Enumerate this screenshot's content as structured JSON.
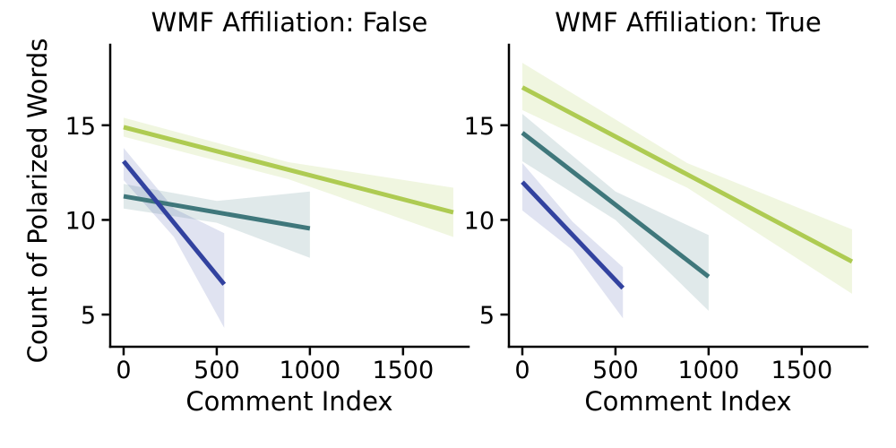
{
  "figure": {
    "background": "#ffffff",
    "text_color": "#000000",
    "ylabel": "Count of Polarized Words",
    "xlabel": "Comment Index",
    "subplot_titles": [
      "WMF Affiliation: False",
      "WMF Affiliation: True"
    ]
  },
  "chart_data": [
    {
      "type": "line",
      "title": "WMF Affiliation: False",
      "xlabel": "Comment Index",
      "ylabel": "Count of Polarized Words",
      "x_ticks": [
        0,
        500,
        1000,
        1500
      ],
      "y_ticks": [
        5,
        10,
        15
      ],
      "xlim": [
        -72,
        1852
      ],
      "ylim": [
        3.3,
        19.25
      ],
      "grid": false,
      "legend": "none",
      "series": [
        {
          "name": "series-green",
          "color": "#aecb52",
          "ci_color": "rgba(174,203,82,0.18)",
          "x": [
            0,
            1770
          ],
          "y": [
            14.9,
            10.4
          ],
          "ci_x": [
            0,
            885,
            1770
          ],
          "ci_upper": [
            15.4,
            13.05,
            11.7
          ],
          "ci_lower": [
            14.4,
            12.15,
            9.1
          ]
        },
        {
          "name": "series-teal",
          "color": "#3f777b",
          "ci_color": "rgba(63,119,123,0.16)",
          "x": [
            0,
            1000
          ],
          "y": [
            11.25,
            9.55
          ],
          "ci_x": [
            0,
            500,
            1000
          ],
          "ci_upper": [
            11.9,
            11.0,
            11.5
          ],
          "ci_lower": [
            10.6,
            9.85,
            8.0
          ]
        },
        {
          "name": "series-blue",
          "color": "#32429f",
          "ci_color": "rgba(50,66,159,0.15)",
          "x": [
            0,
            540
          ],
          "y": [
            13.1,
            6.6
          ],
          "ci_x": [
            0,
            270,
            540
          ],
          "ci_upper": [
            13.8,
            10.6,
            9.3
          ],
          "ci_lower": [
            12.1,
            9.1,
            4.3
          ]
        }
      ]
    },
    {
      "type": "line",
      "title": "WMF Affiliation: True",
      "xlabel": "Comment Index",
      "ylabel": "Count of Polarized Words",
      "x_ticks": [
        0,
        500,
        1000,
        1500
      ],
      "y_ticks": [
        5,
        10,
        15
      ],
      "xlim": [
        -72,
        1852
      ],
      "ylim": [
        3.3,
        19.25
      ],
      "grid": false,
      "legend": "none",
      "series": [
        {
          "name": "series-green",
          "color": "#aecb52",
          "ci_color": "rgba(174,203,82,0.18)",
          "x": [
            0,
            1770
          ],
          "y": [
            17.0,
            7.8
          ],
          "ci_x": [
            0,
            885,
            1770
          ],
          "ci_upper": [
            18.3,
            13.0,
            9.5
          ],
          "ci_lower": [
            15.8,
            11.7,
            6.1
          ]
        },
        {
          "name": "series-teal",
          "color": "#3f777b",
          "ci_color": "rgba(63,119,123,0.16)",
          "x": [
            0,
            1000
          ],
          "y": [
            14.6,
            7.0
          ],
          "ci_x": [
            0,
            500,
            1000
          ],
          "ci_upper": [
            15.6,
            11.5,
            9.2
          ],
          "ci_lower": [
            13.1,
            10.0,
            5.2
          ]
        },
        {
          "name": "series-blue",
          "color": "#32429f",
          "ci_color": "rgba(50,66,159,0.15)",
          "x": [
            0,
            540
          ],
          "y": [
            12.0,
            6.4
          ],
          "ci_x": [
            0,
            270,
            540
          ],
          "ci_upper": [
            13.0,
            9.9,
            7.5
          ],
          "ci_lower": [
            10.5,
            8.4,
            4.8
          ]
        }
      ]
    }
  ],
  "layout": {
    "axis_color": "#000000",
    "spine_width": 2.5,
    "line_width": 5
  }
}
